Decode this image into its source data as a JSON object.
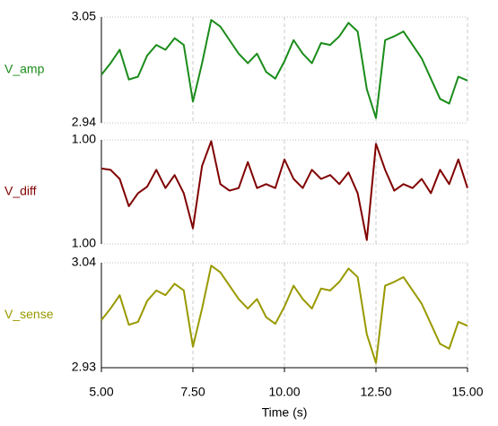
{
  "chart_data": [
    {
      "type": "line",
      "xlim": [
        5,
        15
      ],
      "ylim": [
        2.94,
        3.05
      ],
      "yticks": [
        3.05,
        2.94
      ],
      "grid": true,
      "x": [
        5,
        5.25,
        5.5,
        5.75,
        6,
        6.25,
        6.5,
        6.75,
        7,
        7.25,
        7.5,
        7.75,
        8,
        8.25,
        8.5,
        8.75,
        9,
        9.25,
        9.5,
        9.75,
        10,
        10.25,
        10.5,
        10.75,
        11,
        11.25,
        11.5,
        11.75,
        12,
        12.25,
        12.5,
        12.75,
        13,
        13.25,
        13.5,
        13.75,
        14,
        14.25,
        14.5,
        14.75,
        15
      ],
      "series": [
        {
          "name": "V_amp",
          "color": "#1a8c1a",
          "values": [
            2.99,
            3.002,
            3.016,
            2.985,
            2.988,
            3.01,
            3.021,
            3.016,
            3.028,
            3.021,
            2.962,
            3.002,
            3.047,
            3.04,
            3.026,
            3.012,
            3.002,
            3.012,
            2.993,
            2.986,
            3.004,
            3.026,
            3.012,
            3.002,
            3.023,
            3.021,
            3.03,
            3.044,
            3.035,
            2.975,
            2.945,
            3.026,
            3.03,
            3.035,
            3.021,
            3.007,
            2.986,
            2.965,
            2.96,
            2.988,
            2.984
          ]
        }
      ]
    },
    {
      "type": "line",
      "xlim": [
        5,
        15
      ],
      "ylim": [
        0.9996,
        1.0004
      ],
      "yticks": [
        {
          "value": 1.0004,
          "label": "1.00"
        },
        {
          "value": 0.9996,
          "label": "1.00"
        }
      ],
      "grid": true,
      "x": [
        5,
        5.25,
        5.5,
        5.75,
        6,
        6.25,
        6.5,
        6.75,
        7,
        7.25,
        7.5,
        7.75,
        8,
        8.25,
        8.5,
        8.75,
        9,
        9.25,
        9.5,
        9.75,
        10,
        10.25,
        10.5,
        10.75,
        11,
        11.25,
        11.5,
        11.75,
        12,
        12.25,
        12.5,
        12.75,
        13,
        13.25,
        13.5,
        13.75,
        14,
        14.25,
        14.5,
        14.75,
        15
      ],
      "series": [
        {
          "name": "V_diff",
          "color": "#800000",
          "values": [
            1.00018,
            1.00017,
            1.0001,
            0.99989,
            0.99999,
            1.00004,
            1.00017,
            1.00003,
            1.00013,
            0.99999,
            0.99972,
            1.0002,
            1.00039,
            1.00006,
            1.00001,
            1.00003,
            1.00023,
            1.00003,
            1.00006,
            1.00003,
            1.00025,
            1.0001,
            1.00003,
            1.00017,
            1.0001,
            1.00013,
            1.00006,
            1.00015,
            0.99999,
            0.99963,
            1.00037,
            1.00017,
            1.00001,
            1.00006,
            1.00003,
            1.0001,
            0.99999,
            1.00017,
            1.00006,
            1.00025,
            1.00003
          ]
        }
      ]
    },
    {
      "type": "line",
      "xlim": [
        5,
        15
      ],
      "ylim": [
        2.93,
        3.04
      ],
      "yticks": [
        3.04,
        2.93
      ],
      "grid": true,
      "xlabel": "Time (s)",
      "xticks": [
        {
          "value": 5,
          "label": "5.00"
        },
        {
          "value": 7.5,
          "label": "7.50"
        },
        {
          "value": 10,
          "label": "10.00"
        },
        {
          "value": 12.5,
          "label": "12.50"
        },
        {
          "value": 15,
          "label": "15.00"
        }
      ],
      "x": [
        5,
        5.25,
        5.5,
        5.75,
        6,
        6.25,
        6.5,
        6.75,
        7,
        7.25,
        7.5,
        7.75,
        8,
        8.25,
        8.5,
        8.75,
        9,
        9.25,
        9.5,
        9.75,
        10,
        10.25,
        10.5,
        10.75,
        11,
        11.25,
        11.5,
        11.75,
        12,
        12.25,
        12.5,
        12.75,
        13,
        13.25,
        13.5,
        13.75,
        14,
        14.25,
        14.5,
        14.75,
        15
      ],
      "series": [
        {
          "name": "V_sense",
          "color": "#999900",
          "values": [
            2.98,
            2.992,
            3.006,
            2.975,
            2.978,
            3.0,
            3.011,
            3.006,
            3.018,
            3.011,
            2.952,
            2.992,
            3.037,
            3.03,
            3.016,
            3.002,
            2.992,
            3.002,
            2.983,
            2.976,
            2.994,
            3.016,
            3.002,
            2.992,
            3.013,
            3.011,
            3.02,
            3.034,
            3.025,
            2.965,
            2.935,
            3.016,
            3.02,
            3.025,
            3.011,
            2.997,
            2.976,
            2.955,
            2.95,
            2.978,
            2.974
          ]
        }
      ]
    }
  ]
}
